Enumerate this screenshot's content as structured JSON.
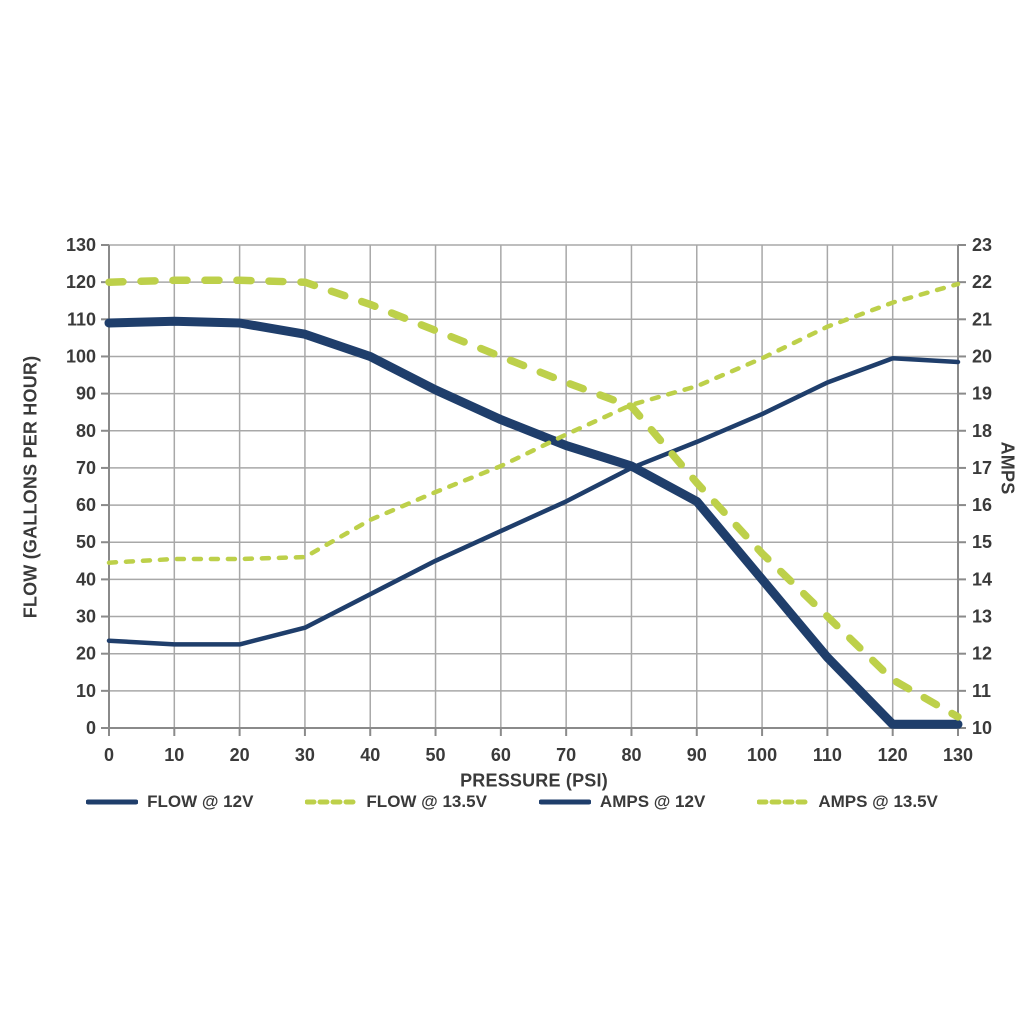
{
  "chart_data": {
    "type": "line",
    "title": "",
    "xlabel": "PRESSURE (PSI)",
    "ylabel_left": "FLOW (GALLONS PER HOUR)",
    "ylabel_right": "AMPS",
    "x": [
      0,
      10,
      20,
      30,
      40,
      50,
      60,
      70,
      80,
      90,
      100,
      110,
      120,
      130
    ],
    "xlim": [
      0,
      130
    ],
    "ylim_left": [
      0,
      130
    ],
    "ylim_right": [
      10,
      23
    ],
    "yticks_left": [
      0,
      10,
      20,
      30,
      40,
      50,
      60,
      70,
      80,
      90,
      100,
      110,
      120,
      130
    ],
    "yticks_right": [
      10,
      11,
      12,
      13,
      14,
      15,
      16,
      17,
      18,
      19,
      20,
      21,
      22,
      23
    ],
    "grid": true,
    "legend_position": "bottom",
    "colors": {
      "navy": "#1F3E6B",
      "green": "#BDD04A",
      "grid": "#A8A8A8",
      "axis": "#8A8A8A",
      "text": "#3A3A3A",
      "background": "#FFFFFF"
    },
    "series": [
      {
        "name": "FLOW @ 12V",
        "axis": "left",
        "color": "#1F3E6B",
        "dash": "solid",
        "width": 9,
        "values": [
          109,
          109.5,
          109,
          106,
          100,
          91,
          83,
          76,
          70.5,
          61,
          40,
          19,
          1,
          1
        ]
      },
      {
        "name": "FLOW @ 13.5V",
        "axis": "left",
        "color": "#BDD04A",
        "dash": "dashed",
        "width": 7.5,
        "values": [
          120,
          120.5,
          120.5,
          120,
          114,
          107,
          100,
          93,
          86.5,
          66,
          47,
          30,
          13,
          3
        ]
      },
      {
        "name": "AMPS @ 12V",
        "axis": "right",
        "color": "#1F3E6B",
        "dash": "solid",
        "width": 4.5,
        "values": [
          12.35,
          12.25,
          12.25,
          12.7,
          13.6,
          14.5,
          15.3,
          16.1,
          17,
          17.7,
          18.45,
          19.3,
          19.95,
          19.85
        ]
      },
      {
        "name": "AMPS @ 13.5V",
        "axis": "right",
        "color": "#BDD04A",
        "dash": "dashed",
        "width": 4.5,
        "values": [
          14.45,
          14.55,
          14.55,
          14.6,
          15.6,
          16.35,
          17.05,
          17.9,
          18.7,
          19.2,
          19.95,
          20.8,
          21.45,
          21.95
        ]
      }
    ]
  }
}
